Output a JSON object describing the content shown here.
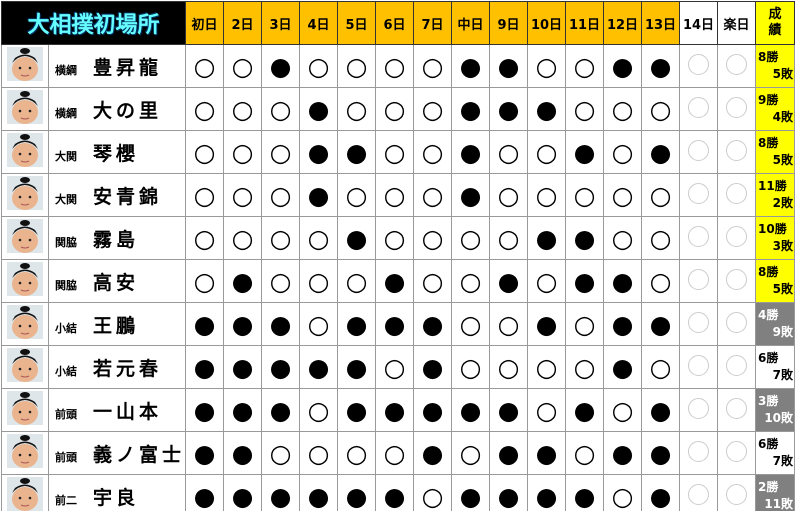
{
  "header": {
    "title": "大相撲初場所",
    "days": [
      "初日",
      "2日",
      "3日",
      "4日",
      "5日",
      "6日",
      "7日",
      "中日",
      "9日",
      "10日",
      "11日",
      "12日",
      "13日",
      "14日",
      "楽日"
    ],
    "record": "成績"
  },
  "rows": [
    {
      "rank": "横綱",
      "name": "豊昇龍",
      "results": [
        "○",
        "○",
        "●",
        "○",
        "○",
        "○",
        "○",
        "●",
        "●",
        "○",
        "○",
        "●",
        "●"
      ],
      "wins": "8勝",
      "losses": "5敗",
      "record_color": "yellow"
    },
    {
      "rank": "横綱",
      "name": "大の里",
      "results": [
        "○",
        "○",
        "○",
        "●",
        "○",
        "○",
        "○",
        "●",
        "●",
        "●",
        "○",
        "○",
        "○"
      ],
      "wins": "9勝",
      "losses": "4敗",
      "record_color": "yellow"
    },
    {
      "rank": "大関",
      "name": "琴櫻",
      "results": [
        "○",
        "○",
        "○",
        "●",
        "●",
        "○",
        "○",
        "●",
        "○",
        "○",
        "●",
        "○",
        "●"
      ],
      "wins": "8勝",
      "losses": "5敗",
      "record_color": "yellow"
    },
    {
      "rank": "大関",
      "name": "安青錦",
      "results": [
        "○",
        "○",
        "○",
        "●",
        "○",
        "○",
        "○",
        "●",
        "○",
        "○",
        "○",
        "○",
        "○"
      ],
      "wins": "11勝",
      "losses": "2敗",
      "record_color": "yellow"
    },
    {
      "rank": "関脇",
      "name": "霧島",
      "results": [
        "○",
        "○",
        "○",
        "○",
        "●",
        "○",
        "○",
        "○",
        "○",
        "●",
        "●",
        "○",
        "○"
      ],
      "wins": "10勝",
      "losses": "3敗",
      "record_color": "yellow"
    },
    {
      "rank": "関脇",
      "name": "高安",
      "results": [
        "○",
        "●",
        "○",
        "○",
        "○",
        "●",
        "○",
        "○",
        "●",
        "○",
        "●",
        "●",
        "○"
      ],
      "wins": "8勝",
      "losses": "5敗",
      "record_color": "yellow"
    },
    {
      "rank": "小結",
      "name": "王鵬",
      "results": [
        "●",
        "●",
        "●",
        "○",
        "●",
        "●",
        "●",
        "○",
        "○",
        "●",
        "○",
        "●",
        "●"
      ],
      "wins": "4勝",
      "losses": "9敗",
      "record_color": "gray"
    },
    {
      "rank": "小結",
      "name": "若元春",
      "results": [
        "●",
        "●",
        "●",
        "●",
        "●",
        "○",
        "●",
        "○",
        "○",
        "○",
        "○",
        "●",
        "○"
      ],
      "wins": "6勝",
      "losses": "7敗",
      "record_color": "white"
    },
    {
      "rank": "前頭",
      "name": "一山本",
      "results": [
        "●",
        "●",
        "●",
        "○",
        "●",
        "●",
        "●",
        "●",
        "●",
        "○",
        "●",
        "○",
        "●"
      ],
      "wins": "3勝",
      "losses": "10敗",
      "record_color": "gray"
    },
    {
      "rank": "前頭",
      "name": "義ノ富士",
      "results": [
        "●",
        "●",
        "○",
        "○",
        "○",
        "○",
        "●",
        "○",
        "●",
        "●",
        "○",
        "●",
        "●"
      ],
      "wins": "6勝",
      "losses": "7敗",
      "record_color": "white"
    },
    {
      "rank": "前二",
      "name": "宇良",
      "results": [
        "●",
        "●",
        "●",
        "●",
        "●",
        "●",
        "○",
        "●",
        "●",
        "●",
        "●",
        "○",
        "●"
      ],
      "wins": "2勝",
      "losses": "11敗",
      "record_color": "gray"
    }
  ]
}
